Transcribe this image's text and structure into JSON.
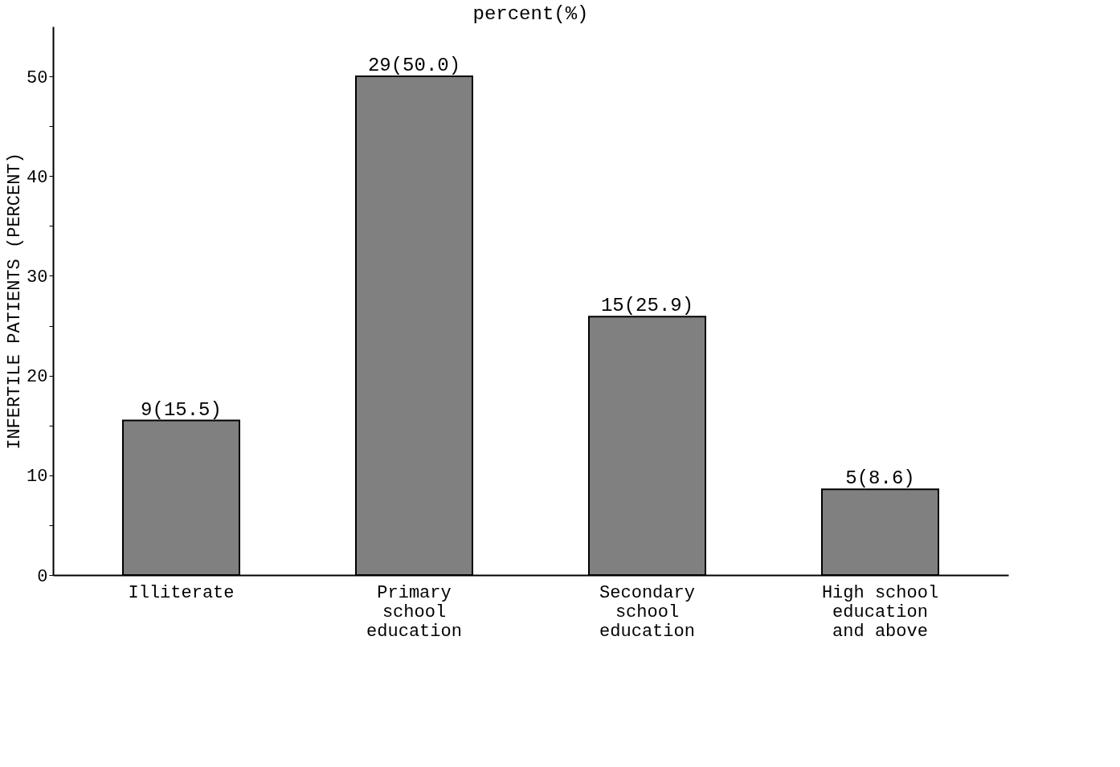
{
  "chart_data": {
    "type": "bar",
    "title": "percent(%)",
    "ylabel": "INFERTILE PATIENTS (PERCENT)",
    "categories": [
      "Illiterate",
      "Primary school education",
      "Secondary school education",
      "High school education and above"
    ],
    "values": [
      15.5,
      50.0,
      25.9,
      8.6
    ],
    "value_labels": [
      "9(15.5)",
      "29(50.0)",
      "15(25.9)",
      "5(8.6)"
    ],
    "color": "#808080",
    "ylim": [
      0,
      55
    ],
    "yticks": [
      0,
      {
        "value": 5,
        "label": null
      },
      10,
      {
        "value": 15,
        "label": null
      },
      20,
      {
        "value": 25,
        "label": null
      },
      30,
      {
        "value": 35,
        "label": null
      },
      40,
      {
        "value": 45,
        "label": null
      },
      50
    ],
    "grid": false
  }
}
